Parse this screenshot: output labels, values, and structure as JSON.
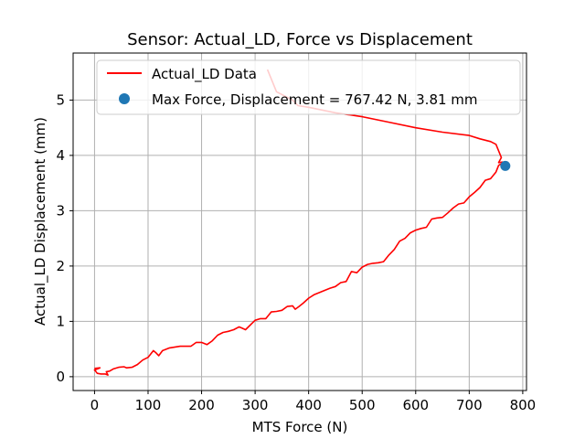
{
  "chart_data": {
    "type": "line",
    "title": "Sensor: Actual_LD, Force vs Displacement",
    "xlabel": "MTS Force (N)",
    "ylabel": "Actual_LD Displacement (mm)",
    "xlim": [
      -40,
      807
    ],
    "ylim": [
      -0.25,
      5.85
    ],
    "xticks": [
      0,
      100,
      200,
      300,
      400,
      500,
      600,
      700,
      800
    ],
    "yticks": [
      0,
      1,
      2,
      3,
      4,
      5
    ],
    "grid": true,
    "legend_position": "top-right",
    "colors": {
      "line": "#ff0000",
      "marker": "#1f77b4"
    },
    "series": [
      {
        "name": "Actual_LD Data",
        "x": [
          0,
          10,
          0,
          2,
          5,
          12,
          20,
          25,
          22,
          28,
          35,
          45,
          55,
          60,
          70,
          80,
          90,
          100,
          110,
          115,
          120,
          127,
          140,
          160,
          180,
          190,
          200,
          210,
          220,
          230,
          240,
          250,
          260,
          270,
          275,
          282,
          300,
          310,
          320,
          330,
          340,
          350,
          360,
          370,
          375,
          382,
          390,
          400,
          410,
          420,
          430,
          440,
          450,
          460,
          470,
          480,
          490,
          500,
          510,
          520,
          530,
          540,
          550,
          560,
          570,
          580,
          590,
          600,
          610,
          620,
          630,
          640,
          650,
          660,
          670,
          680,
          690,
          700,
          710,
          720,
          730,
          740,
          750,
          755,
          760,
          767.42,
          762,
          755,
          760,
          750,
          740,
          720,
          700,
          650,
          600,
          550,
          500,
          450,
          400,
          380,
          370,
          340,
          323
        ],
        "y": [
          0.15,
          0.16,
          0.12,
          0.1,
          0.06,
          0.05,
          0.05,
          0.03,
          0.09,
          0.1,
          0.14,
          0.17,
          0.18,
          0.16,
          0.17,
          0.22,
          0.3,
          0.35,
          0.47,
          0.43,
          0.38,
          0.47,
          0.52,
          0.55,
          0.55,
          0.62,
          0.62,
          0.58,
          0.65,
          0.75,
          0.8,
          0.82,
          0.85,
          0.9,
          0.88,
          0.85,
          1.02,
          1.05,
          1.05,
          1.17,
          1.18,
          1.2,
          1.27,
          1.28,
          1.22,
          1.27,
          1.33,
          1.42,
          1.48,
          1.52,
          1.56,
          1.6,
          1.63,
          1.7,
          1.72,
          1.9,
          1.88,
          1.98,
          2.03,
          2.05,
          2.06,
          2.08,
          2.2,
          2.3,
          2.45,
          2.5,
          2.6,
          2.65,
          2.68,
          2.7,
          2.85,
          2.87,
          2.88,
          2.96,
          3.05,
          3.12,
          3.14,
          3.25,
          3.33,
          3.42,
          3.55,
          3.58,
          3.7,
          3.82,
          3.85,
          3.81,
          3.88,
          3.87,
          3.96,
          4.2,
          4.25,
          4.3,
          4.36,
          4.42,
          4.5,
          4.6,
          4.7,
          4.77,
          4.87,
          4.9,
          5.0,
          5.15,
          5.55
        ]
      }
    ],
    "max_point": {
      "x": 767.42,
      "y": 3.81,
      "label": "Max Force, Displacement = 767.42 N, 3.81 mm"
    }
  }
}
